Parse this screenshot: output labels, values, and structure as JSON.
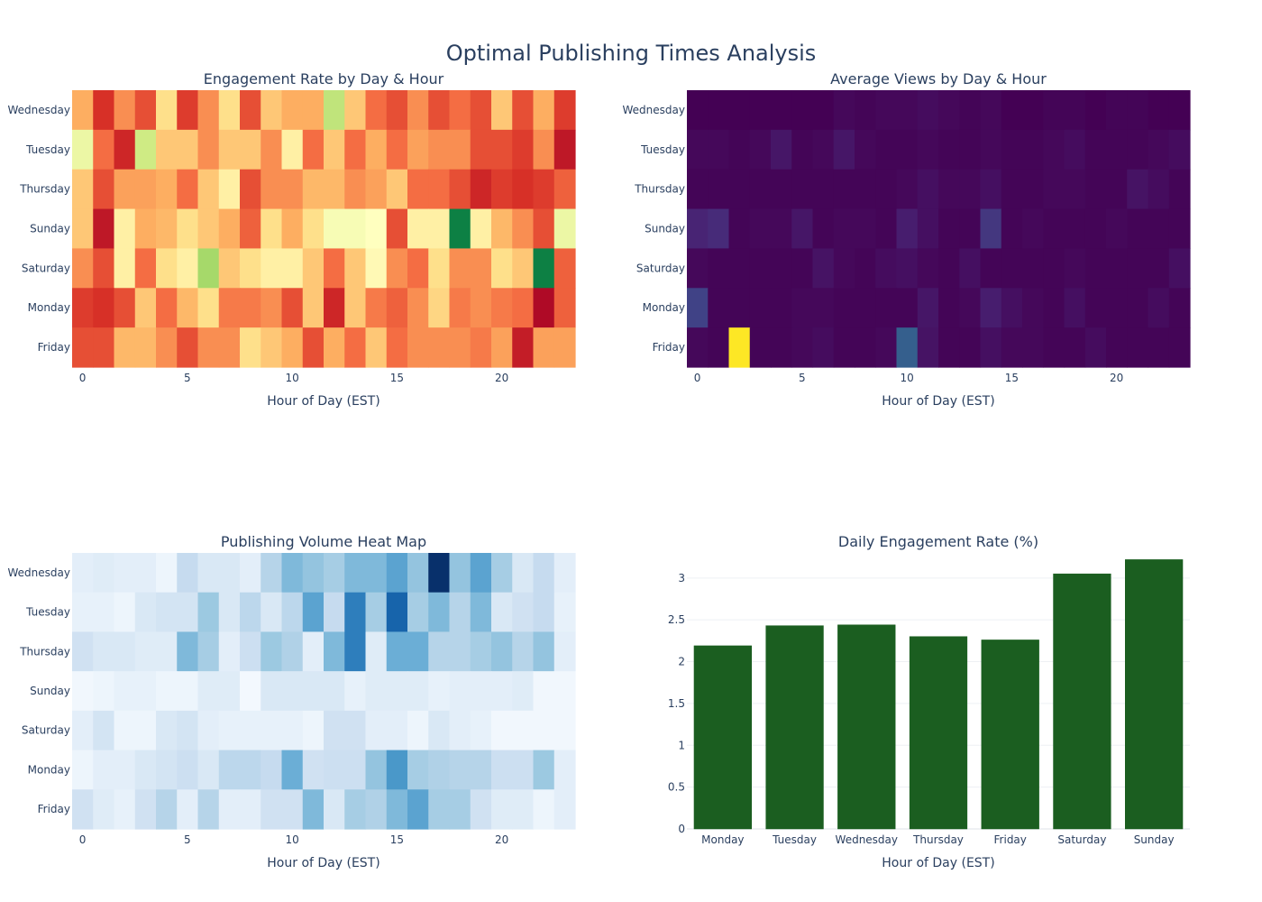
{
  "page_title": "Optimal Publishing Times Analysis",
  "chart_data": [
    {
      "id": "engagement",
      "type": "heatmap",
      "title": "Engagement Rate by Day & Hour",
      "xlabel": "Hour of Day (EST)",
      "ylabel": "",
      "colorscale": "RdYlGn",
      "zrange": [
        0,
        1
      ],
      "x_ticks": [
        0,
        5,
        10,
        15,
        20
      ],
      "x": [
        0,
        1,
        2,
        3,
        4,
        5,
        6,
        7,
        8,
        9,
        10,
        11,
        12,
        13,
        14,
        15,
        16,
        17,
        18,
        19,
        20,
        21,
        22,
        23
      ],
      "y": [
        "Wednesday",
        "Tuesday",
        "Thursday",
        "Sunday",
        "Saturday",
        "Monday",
        "Friday"
      ],
      "z": [
        [
          0.3,
          0.1,
          0.25,
          0.15,
          0.4,
          0.12,
          0.25,
          0.4,
          0.15,
          0.35,
          0.3,
          0.3,
          0.65,
          0.35,
          0.2,
          0.15,
          0.25,
          0.15,
          0.2,
          0.15,
          0.35,
          0.15,
          0.3,
          0.12
        ],
        [
          0.55,
          0.2,
          0.08,
          0.62,
          0.35,
          0.35,
          0.25,
          0.35,
          0.35,
          0.25,
          0.45,
          0.2,
          0.35,
          0.2,
          0.3,
          0.2,
          0.28,
          0.25,
          0.25,
          0.15,
          0.15,
          0.12,
          0.25,
          0.05
        ],
        [
          0.35,
          0.15,
          0.28,
          0.28,
          0.3,
          0.2,
          0.35,
          0.45,
          0.15,
          0.25,
          0.25,
          0.32,
          0.32,
          0.25,
          0.28,
          0.35,
          0.2,
          0.2,
          0.15,
          0.08,
          0.12,
          0.1,
          0.12,
          0.18
        ],
        [
          0.35,
          0.05,
          0.45,
          0.3,
          0.32,
          0.4,
          0.35,
          0.3,
          0.18,
          0.4,
          0.3,
          0.4,
          0.52,
          0.52,
          0.5,
          0.15,
          0.45,
          0.45,
          0.95,
          0.45,
          0.32,
          0.25,
          0.15,
          0.55
        ],
        [
          0.25,
          0.15,
          0.45,
          0.2,
          0.4,
          0.45,
          0.7,
          0.35,
          0.4,
          0.45,
          0.45,
          0.35,
          0.2,
          0.35,
          0.48,
          0.25,
          0.2,
          0.4,
          0.25,
          0.25,
          0.4,
          0.35,
          0.95,
          0.18
        ],
        [
          0.12,
          0.1,
          0.15,
          0.35,
          0.2,
          0.32,
          0.4,
          0.22,
          0.22,
          0.25,
          0.15,
          0.35,
          0.08,
          0.35,
          0.22,
          0.18,
          0.25,
          0.38,
          0.22,
          0.25,
          0.22,
          0.2,
          0.02,
          0.18
        ],
        [
          0.15,
          0.15,
          0.32,
          0.32,
          0.25,
          0.15,
          0.25,
          0.25,
          0.4,
          0.35,
          0.3,
          0.15,
          0.3,
          0.2,
          0.35,
          0.2,
          0.25,
          0.25,
          0.25,
          0.22,
          0.28,
          0.06,
          0.28,
          0.28
        ]
      ]
    },
    {
      "id": "views",
      "type": "heatmap",
      "title": "Average Views by Day & Hour",
      "xlabel": "Hour of Day (EST)",
      "ylabel": "",
      "colorscale": "Viridis",
      "zrange": [
        0,
        1
      ],
      "x_ticks": [
        0,
        5,
        10,
        15,
        20
      ],
      "x": [
        0,
        1,
        2,
        3,
        4,
        5,
        6,
        7,
        8,
        9,
        10,
        11,
        12,
        13,
        14,
        15,
        16,
        17,
        18,
        19,
        20,
        21,
        22,
        23
      ],
      "y": [
        "Wednesday",
        "Tuesday",
        "Thursday",
        "Sunday",
        "Saturday",
        "Monday",
        "Friday"
      ],
      "z": [
        [
          0.0,
          0.0,
          0.0,
          0.0,
          0.0,
          0.0,
          0.0,
          0.02,
          0.01,
          0.02,
          0.02,
          0.03,
          0.02,
          0.01,
          0.02,
          0.0,
          0.0,
          0.01,
          0.01,
          0.0,
          0.01,
          0.01,
          0.0,
          0.0
        ],
        [
          0.02,
          0.02,
          0.01,
          0.02,
          0.06,
          0.01,
          0.02,
          0.06,
          0.02,
          0.01,
          0.01,
          0.02,
          0.01,
          0.01,
          0.02,
          0.01,
          0.01,
          0.02,
          0.03,
          0.01,
          0.01,
          0.01,
          0.02,
          0.03
        ],
        [
          0.01,
          0.01,
          0.01,
          0.01,
          0.01,
          0.01,
          0.01,
          0.01,
          0.01,
          0.01,
          0.02,
          0.04,
          0.02,
          0.02,
          0.04,
          0.01,
          0.01,
          0.02,
          0.02,
          0.01,
          0.01,
          0.05,
          0.03,
          0.01
        ],
        [
          0.1,
          0.12,
          0.01,
          0.02,
          0.02,
          0.06,
          0.01,
          0.02,
          0.02,
          0.01,
          0.08,
          0.04,
          0.01,
          0.01,
          0.16,
          0.01,
          0.02,
          0.01,
          0.01,
          0.01,
          0.02,
          0.01,
          0.01,
          0.01
        ],
        [
          0.02,
          0.01,
          0.01,
          0.01,
          0.01,
          0.01,
          0.05,
          0.02,
          0.01,
          0.03,
          0.04,
          0.02,
          0.01,
          0.04,
          0.01,
          0.01,
          0.01,
          0.01,
          0.02,
          0.01,
          0.01,
          0.01,
          0.01,
          0.04
        ],
        [
          0.2,
          0.01,
          0.01,
          0.01,
          0.01,
          0.02,
          0.02,
          0.01,
          0.01,
          0.01,
          0.01,
          0.06,
          0.01,
          0.02,
          0.08,
          0.04,
          0.02,
          0.01,
          0.04,
          0.01,
          0.01,
          0.01,
          0.03,
          0.01
        ],
        [
          0.02,
          0.01,
          1.0,
          0.01,
          0.01,
          0.02,
          0.03,
          0.01,
          0.01,
          0.02,
          0.3,
          0.05,
          0.01,
          0.01,
          0.04,
          0.02,
          0.02,
          0.01,
          0.01,
          0.03,
          0.01,
          0.01,
          0.01,
          0.01
        ]
      ]
    },
    {
      "id": "volume",
      "type": "heatmap",
      "title": "Publishing Volume Heat Map",
      "xlabel": "Hour of Day (EST)",
      "ylabel": "",
      "colorscale": "Blues",
      "zrange": [
        0,
        1
      ],
      "x_ticks": [
        0,
        5,
        10,
        15,
        20
      ],
      "x": [
        0,
        1,
        2,
        3,
        4,
        5,
        6,
        7,
        8,
        9,
        10,
        11,
        12,
        13,
        14,
        15,
        16,
        17,
        18,
        19,
        20,
        21,
        22,
        23
      ],
      "y": [
        "Wednesday",
        "Tuesday",
        "Thursday",
        "Sunday",
        "Saturday",
        "Monday",
        "Friday"
      ],
      "z": [
        [
          0.1,
          0.12,
          0.1,
          0.1,
          0.05,
          0.25,
          0.15,
          0.15,
          0.1,
          0.3,
          0.45,
          0.4,
          0.35,
          0.45,
          0.45,
          0.55,
          0.4,
          1.0,
          0.4,
          0.55,
          0.35,
          0.15,
          0.25,
          0.1
        ],
        [
          0.08,
          0.08,
          0.05,
          0.15,
          0.18,
          0.18,
          0.38,
          0.15,
          0.28,
          0.15,
          0.28,
          0.55,
          0.25,
          0.7,
          0.35,
          0.8,
          0.35,
          0.45,
          0.3,
          0.45,
          0.15,
          0.2,
          0.25,
          0.08
        ],
        [
          0.2,
          0.15,
          0.15,
          0.12,
          0.12,
          0.45,
          0.35,
          0.1,
          0.22,
          0.38,
          0.32,
          0.1,
          0.45,
          0.7,
          0.12,
          0.5,
          0.5,
          0.3,
          0.3,
          0.35,
          0.4,
          0.3,
          0.4,
          0.1
        ],
        [
          0.03,
          0.05,
          0.08,
          0.08,
          0.05,
          0.05,
          0.12,
          0.12,
          0.02,
          0.15,
          0.15,
          0.15,
          0.15,
          0.08,
          0.12,
          0.12,
          0.12,
          0.08,
          0.1,
          0.1,
          0.1,
          0.12,
          0.03,
          0.03
        ],
        [
          0.1,
          0.18,
          0.05,
          0.05,
          0.15,
          0.18,
          0.1,
          0.08,
          0.08,
          0.08,
          0.08,
          0.05,
          0.2,
          0.2,
          0.1,
          0.1,
          0.05,
          0.15,
          0.1,
          0.08,
          0.03,
          0.03,
          0.03,
          0.03
        ],
        [
          0.05,
          0.1,
          0.1,
          0.15,
          0.18,
          0.22,
          0.15,
          0.28,
          0.28,
          0.25,
          0.5,
          0.2,
          0.22,
          0.22,
          0.4,
          0.6,
          0.35,
          0.32,
          0.3,
          0.3,
          0.22,
          0.22,
          0.38,
          0.1
        ],
        [
          0.2,
          0.12,
          0.08,
          0.2,
          0.3,
          0.1,
          0.3,
          0.1,
          0.1,
          0.2,
          0.2,
          0.45,
          0.15,
          0.35,
          0.32,
          0.45,
          0.55,
          0.35,
          0.35,
          0.2,
          0.12,
          0.12,
          0.05,
          0.1
        ]
      ]
    },
    {
      "id": "daily",
      "type": "bar",
      "title": "Daily Engagement Rate (%)",
      "xlabel": "Hour of Day (EST)",
      "ylabel": "",
      "categories": [
        "Monday",
        "Tuesday",
        "Wednesday",
        "Thursday",
        "Friday",
        "Saturday",
        "Sunday"
      ],
      "values": [
        2.19,
        2.43,
        2.44,
        2.3,
        2.26,
        3.05,
        3.22
      ],
      "ylim": [
        0,
        3.3
      ],
      "y_ticks": [
        0,
        0.5,
        1,
        1.5,
        2,
        2.5,
        3
      ],
      "bar_color": "#1b5e20",
      "grid": true
    }
  ]
}
